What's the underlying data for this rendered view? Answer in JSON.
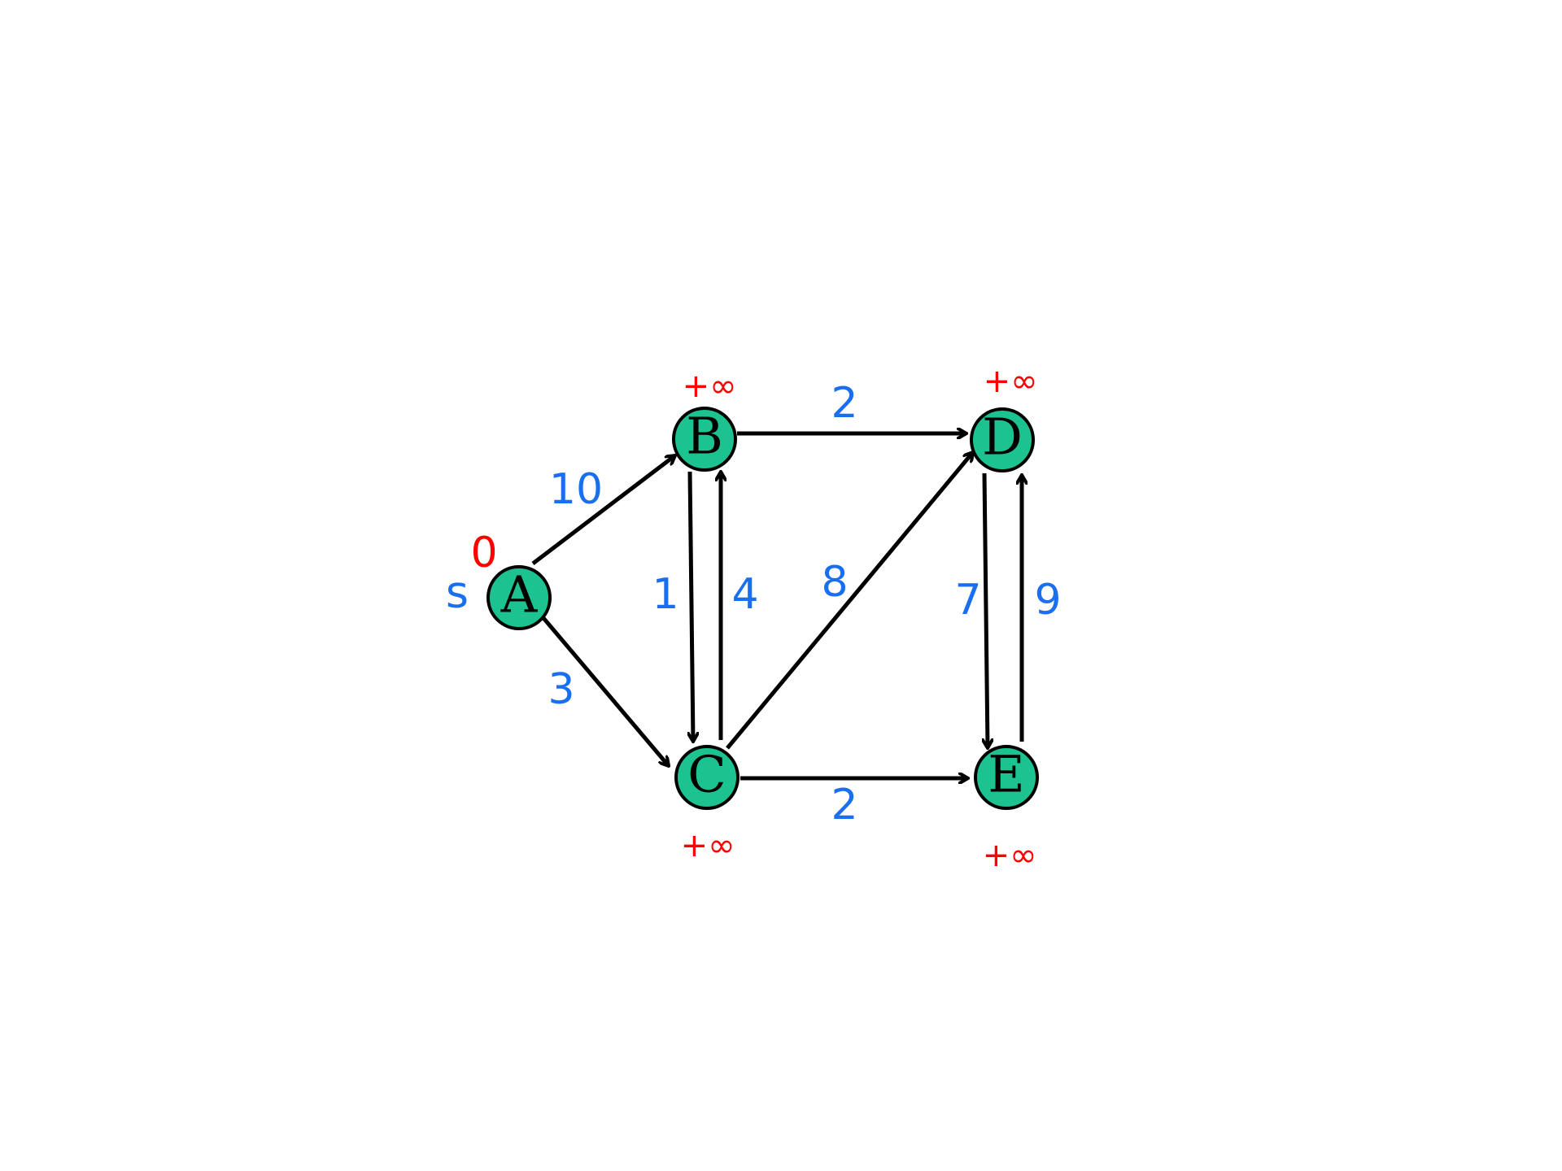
{
  "colors": {
    "node_fill": "#1cc391",
    "weight_text": "#1a6ef0",
    "distance_text": "#ff0000",
    "edge": "#000000"
  },
  "source_marker": "s",
  "nodes": [
    {
      "id": "A",
      "label": "A",
      "distance": "0"
    },
    {
      "id": "B",
      "label": "B",
      "distance": "+∞"
    },
    {
      "id": "C",
      "label": "C",
      "distance": "+∞"
    },
    {
      "id": "D",
      "label": "D",
      "distance": "+∞"
    },
    {
      "id": "E",
      "label": "E",
      "distance": "+∞"
    }
  ],
  "edges": [
    {
      "from": "A",
      "to": "B",
      "weight": "10"
    },
    {
      "from": "A",
      "to": "C",
      "weight": "3"
    },
    {
      "from": "B",
      "to": "C",
      "weight": "1"
    },
    {
      "from": "C",
      "to": "B",
      "weight": "4"
    },
    {
      "from": "B",
      "to": "D",
      "weight": "2"
    },
    {
      "from": "C",
      "to": "D",
      "weight": "8"
    },
    {
      "from": "C",
      "to": "E",
      "weight": "2"
    },
    {
      "from": "D",
      "to": "E",
      "weight": "7"
    },
    {
      "from": "E",
      "to": "D",
      "weight": "9"
    }
  ]
}
